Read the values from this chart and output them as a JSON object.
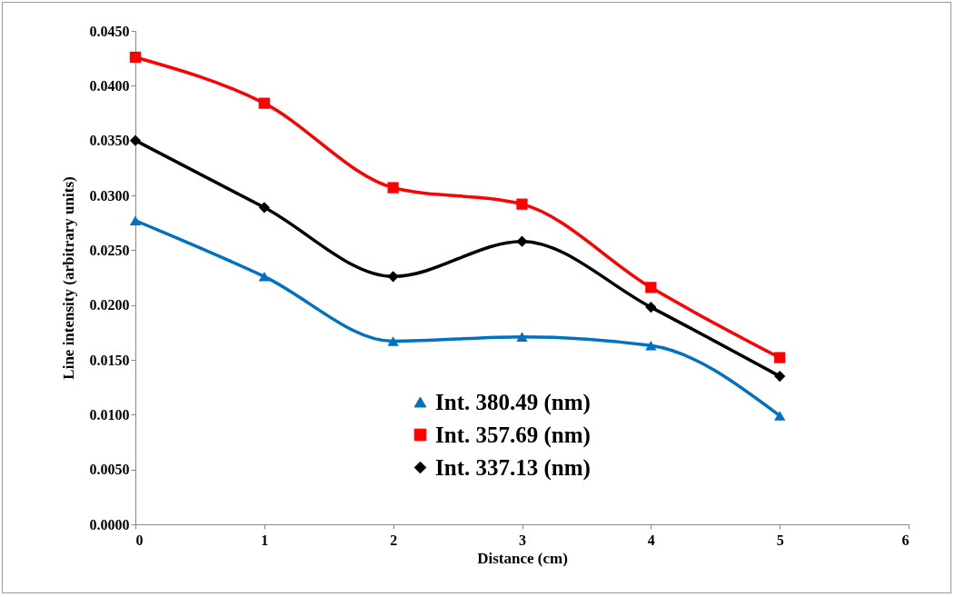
{
  "chart_data": {
    "type": "line",
    "xlabel": "Distance  (cm)",
    "ylabel": "Line intensity (arbitrary units)",
    "x": [
      0,
      1,
      2,
      3,
      4,
      5
    ],
    "series": [
      {
        "name": "Int. 380.49 (nm)",
        "color": "#0070c0",
        "marker": "triangle",
        "values": [
          0.0277,
          0.0226,
          0.0167,
          0.0171,
          0.0163,
          0.0099
        ]
      },
      {
        "name": "Int. 357.69 (nm)",
        "color": "#ff0000",
        "marker": "square",
        "values": [
          0.0426,
          0.0384,
          0.0307,
          0.0292,
          0.0216,
          0.0152
        ]
      },
      {
        "name": "Int. 337.13 (nm)",
        "color": "#000000",
        "marker": "diamond",
        "values": [
          0.035,
          0.0289,
          0.0226,
          0.0258,
          0.0198,
          0.0135
        ]
      }
    ],
    "xlim": [
      0,
      6
    ],
    "xticks": [
      0,
      1,
      2,
      3,
      4,
      5,
      6
    ],
    "ylim": [
      0,
      0.045
    ],
    "yticks": [
      {
        "value": 0,
        "label": "0.0000"
      },
      {
        "value": 0.005,
        "label": "0.0050"
      },
      {
        "value": 0.01,
        "label": "0.0100"
      },
      {
        "value": 0.015,
        "label": "0.0150"
      },
      {
        "value": 0.02,
        "label": "0.0200"
      },
      {
        "value": 0.025,
        "label": "0.0250"
      },
      {
        "value": 0.03,
        "label": "0.0300"
      },
      {
        "value": 0.035,
        "label": "0.0350"
      },
      {
        "value": 0.04,
        "label": "0.0400"
      },
      {
        "value": 0.045,
        "label": "0.0450"
      }
    ],
    "grid": false,
    "legend": "bottom",
    "line_style": "solid"
  }
}
